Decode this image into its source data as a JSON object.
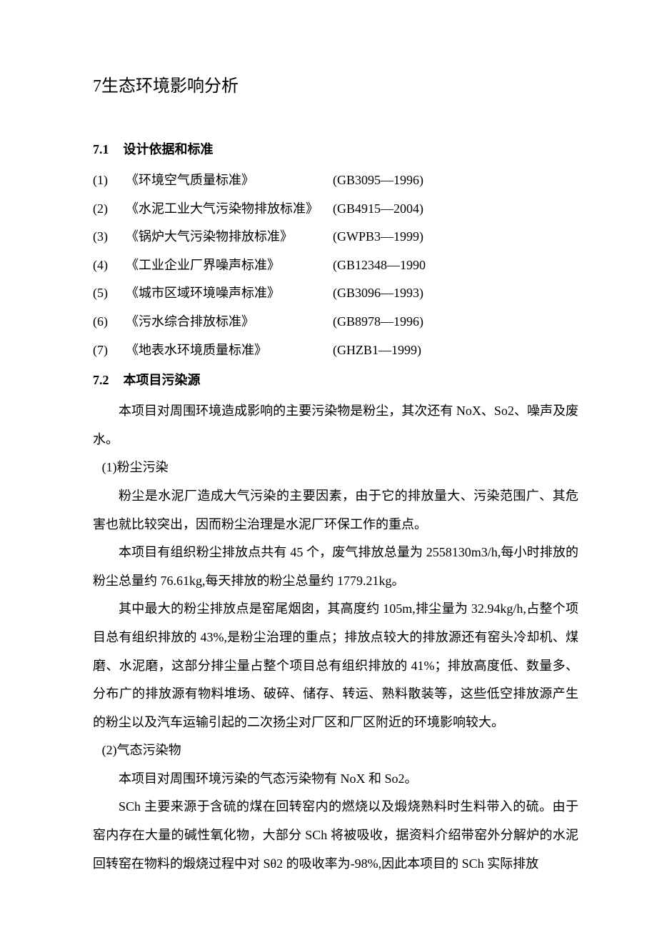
{
  "chapter": {
    "number": "7",
    "title": "生态环境影响分析"
  },
  "section71": {
    "number": "7.1",
    "title": "设计依据和标准",
    "standards": [
      {
        "num": "(1)",
        "name": "《环境空气质量标准》",
        "code": "(GB3095—1996)"
      },
      {
        "num": "(2)",
        "name": "《水泥工业大气污染物排放标准》",
        "code": "(GB4915—2004)"
      },
      {
        "num": "(3)",
        "name": "《锅炉大气污染物排放标准》",
        "code": "(GWPB3—1999)"
      },
      {
        "num": "(4)",
        "name": "《工业企业厂界噪声标准》",
        "code": "(GB12348—1990"
      },
      {
        "num": "(5)",
        "name": "《城市区域环境噪声标准》",
        "code": "(GB3096—1993)"
      },
      {
        "num": "(6)",
        "name": "《污水综合排放标准》",
        "code": "(GB8978—1996)"
      },
      {
        "num": "(7)",
        "name": "《地表水环境质量标准》",
        "code": "(GHZB1—1999)"
      }
    ]
  },
  "section72": {
    "number": "7.2",
    "title": "本项目污染源",
    "intro_a": "本项目对周围环境造成影响的主要污染物是粉尘，其次还有 ",
    "intro_lat1": "NoX",
    "intro_b": "、",
    "intro_lat2": "So2",
    "intro_c": "、噪声及废水。",
    "item1_label": "(1)粉尘污染",
    "p1": "粉尘是水泥厂造成大气污染的主要因素，由于它的排放量大、污染范围广、其危害也就比较突出，因而粉尘治理是水泥厂环保工作的重点。",
    "p2_a": "本项目有组织粉尘排放点共有 ",
    "p2_n1": "45",
    "p2_b": " 个，废气排放总量为 ",
    "p2_n2": "2558130m3/h,",
    "p2_c": "每小时排放的粉尘总量约 ",
    "p2_n3": "76.61kg,",
    "p2_d": "每天排放的粉尘总量约 ",
    "p2_n4": "1779.21kg",
    "p2_e": "。",
    "p3_a": "其中最大的粉尘排放点是窑尾烟囱，其高度约 ",
    "p3_n1": "105m,",
    "p3_b": "排尘量为 ",
    "p3_n2": "32.94kg/h,",
    "p3_c": "占整个项目总有组织排放的 ",
    "p3_n3": "43%,",
    "p3_d": "是粉尘治理的重点；排放点较大的排放源还有窑头冷却机、煤磨、水泥磨，这部分排尘量占整个项目总有组织排放的 ",
    "p3_n4": "41%",
    "p3_e": "；排放高度低、数量多、分布广的排放源有物料堆场、破碎、储存、转运、熟料散装等，这些低空排放源产生的粉尘以及汽车运输引起的二次扬尘对厂区和厂区附近的环境影响较大。",
    "item2_label": "(2)气态污染物",
    "p4_a": "本项目对周围环境污染的气态污染物有 ",
    "p4_lat1": "NoX",
    "p4_b": " 和 ",
    "p4_lat2": "So2",
    "p4_c": "。",
    "p5_a": "SCh",
    "p5_b": " 主要来源于含硫的煤在回转窑内的燃烧以及煅烧熟料时生料带入的硫。由于窑内存在大量的碱性氧化物，大部分 ",
    "p5_c": "SCh",
    "p5_d": " 将被吸收，据资料介绍带窑外分解炉的水泥回转窑在物料的煅烧过程中对 ",
    "p5_e": "Sθ2",
    "p5_f": " 的吸收率为",
    "p5_g": "-98%,",
    "p5_h": "因此本项目的 ",
    "p5_i": "SCh",
    "p5_j": " 实际排放"
  }
}
